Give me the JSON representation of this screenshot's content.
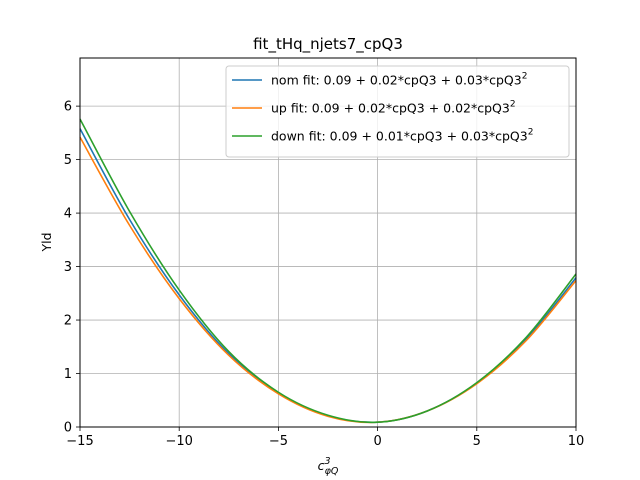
{
  "chart_data": {
    "type": "line",
    "title": "fit_tHq_njets7_cpQ3",
    "ylabel": "Yld",
    "xlabel_base": "c",
    "xlabel_sup": "3",
    "xlabel_sub": "φQ",
    "xlim": [
      -15,
      10
    ],
    "ylim": [
      0,
      6.9
    ],
    "xticks": [
      -15,
      -10,
      -5,
      0,
      5,
      10
    ],
    "xtick_labels": [
      "−15",
      "−10",
      "−5",
      "0",
      "5",
      "10"
    ],
    "yticks": [
      0,
      1,
      2,
      3,
      4,
      5,
      6
    ],
    "ytick_labels": [
      "0",
      "1",
      "2",
      "3",
      "4",
      "5",
      "6"
    ],
    "grid": true,
    "legend_position": "top-right",
    "series": [
      {
        "name": "nom fit: 0.09 + 0.02*cpQ3 + 0.03*cpQ3",
        "name_sup": "2",
        "color": "#1f77b4",
        "x": [
          -15,
          -12.5,
          -10,
          -7.5,
          -5,
          -2.5,
          0,
          2.5,
          5,
          7.5,
          10
        ],
        "y": [
          5.58,
          3.88,
          2.47,
          1.37,
          0.64,
          0.21,
          0.09,
          0.3,
          0.82,
          1.65,
          2.79
        ]
      },
      {
        "name": "up fit: 0.09 + 0.02*cpQ3 + 0.02*cpQ3",
        "name_sup": "2",
        "color": "#ff7f0e",
        "x": [
          -15,
          -12.5,
          -10,
          -7.5,
          -5,
          -2.5,
          0,
          2.5,
          5,
          7.5,
          10
        ],
        "y": [
          5.42,
          3.77,
          2.4,
          1.34,
          0.62,
          0.2,
          0.09,
          0.3,
          0.81,
          1.62,
          2.74
        ]
      },
      {
        "name": "down fit: 0.09 + 0.01*cpQ3 + 0.03*cpQ3",
        "name_sup": "2",
        "color": "#2ca02c",
        "x": [
          -15,
          -12.5,
          -10,
          -7.5,
          -5,
          -2.5,
          0,
          2.5,
          5,
          7.5,
          10
        ],
        "y": [
          5.76,
          4.03,
          2.56,
          1.41,
          0.65,
          0.22,
          0.09,
          0.3,
          0.83,
          1.68,
          2.86
        ]
      }
    ]
  }
}
